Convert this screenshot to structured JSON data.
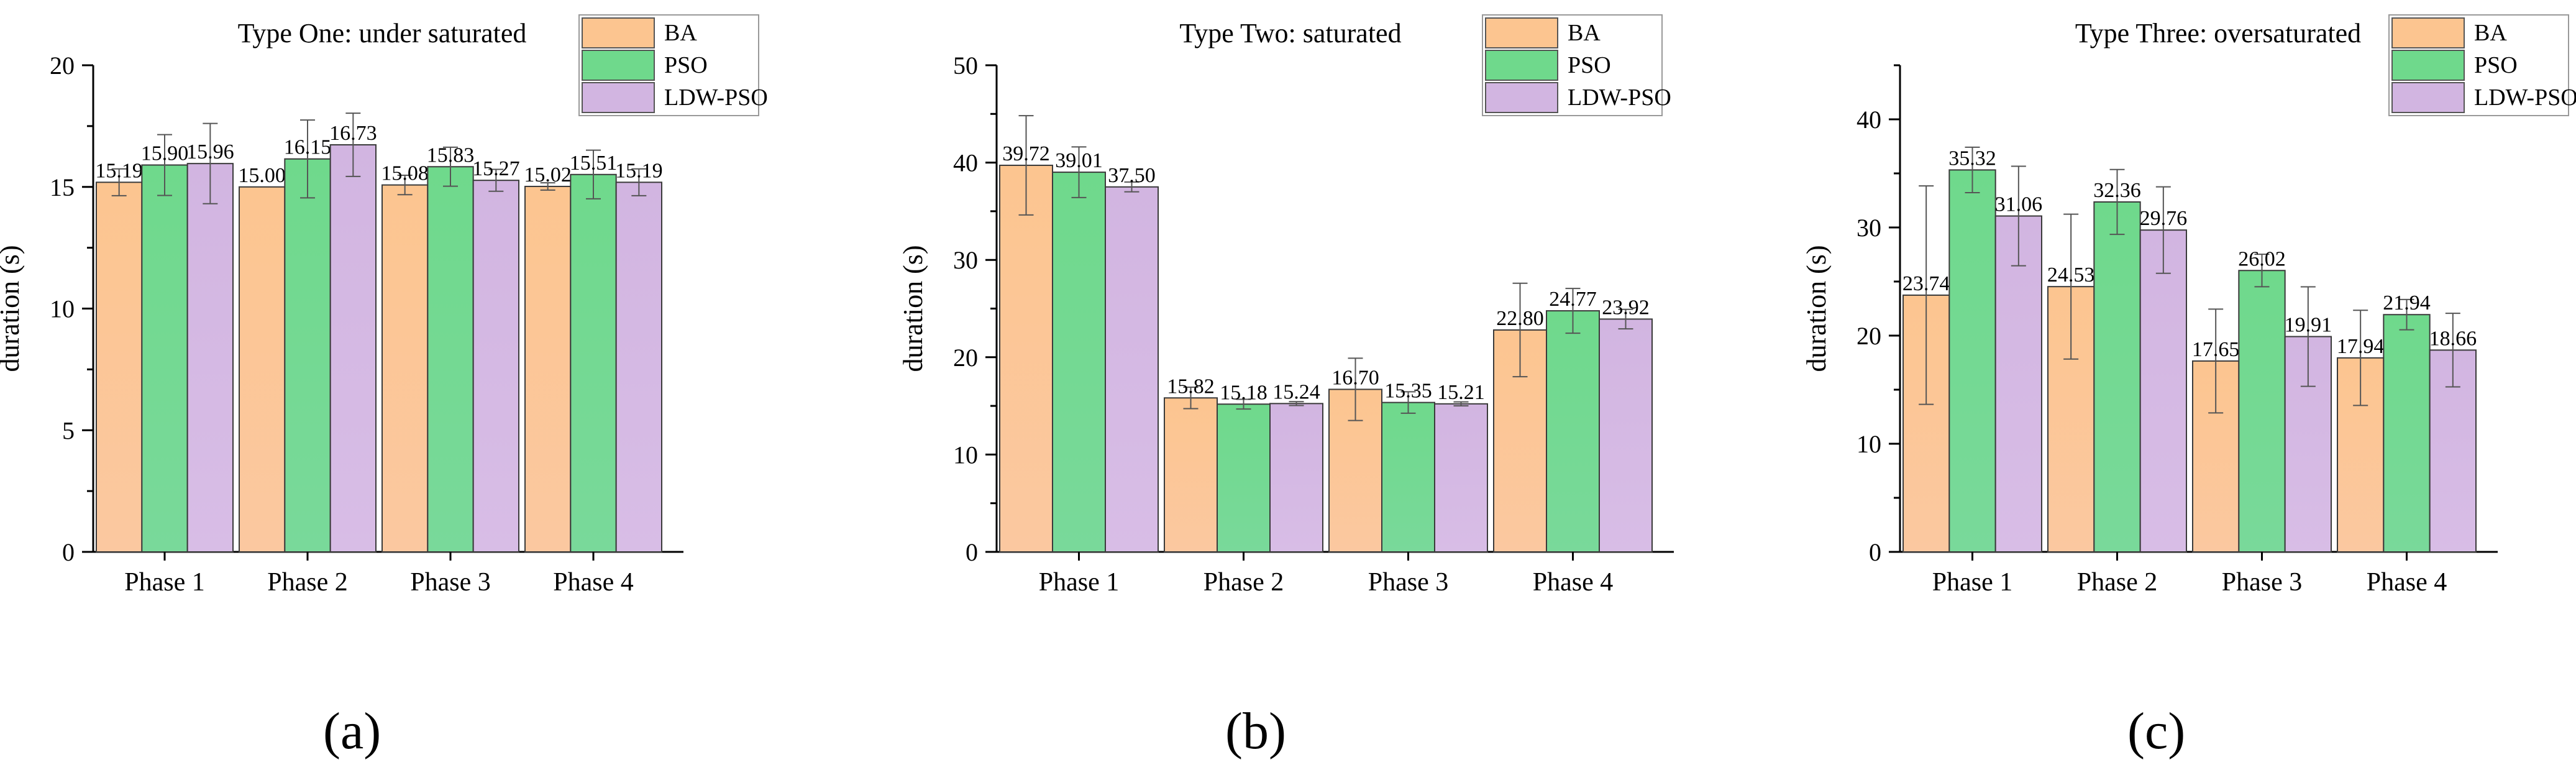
{
  "figure": {
    "panel_labels": [
      "(a)",
      "(b)",
      "(c)"
    ],
    "bar_colors": {
      "BA": "#fcc590",
      "PSO": "#6fd98c",
      "LDW-PSO": "#d2b5e1"
    }
  },
  "chart_data": [
    {
      "type": "bar",
      "title": "Type One: under saturated",
      "xlabel": "",
      "ylabel": "duration (s)",
      "ylim": [
        0,
        20
      ],
      "yticks": [
        0,
        5,
        10,
        15,
        20
      ],
      "categories": [
        "Phase 1",
        "Phase 2",
        "Phase 3",
        "Phase 4"
      ],
      "legend_position": "top-right",
      "series": [
        {
          "name": "BA",
          "values": [
            15.19,
            15.0,
            15.08,
            15.02
          ],
          "labels": [
            "15.19",
            "15.00",
            "15.08",
            "15.02"
          ],
          "errors": [
            0.55,
            0.0,
            0.4,
            0.15
          ]
        },
        {
          "name": "PSO",
          "values": [
            15.9,
            16.15,
            15.83,
            15.51
          ],
          "labels": [
            "15.90",
            "16.15",
            "15.83",
            "15.51"
          ],
          "errors": [
            1.25,
            1.6,
            0.8,
            1.0
          ]
        },
        {
          "name": "LDW-PSO",
          "values": [
            15.96,
            16.73,
            15.27,
            15.19
          ],
          "labels": [
            "15.96",
            "16.73",
            "15.27",
            "15.19"
          ],
          "errors": [
            1.65,
            1.3,
            0.45,
            0.55
          ]
        }
      ]
    },
    {
      "type": "bar",
      "title": "Type Two: saturated",
      "xlabel": "",
      "ylabel": "duration (s)",
      "ylim": [
        0,
        50
      ],
      "yticks": [
        0,
        10,
        20,
        30,
        40,
        50
      ],
      "categories": [
        "Phase 1",
        "Phase 2",
        "Phase 3",
        "Phase 4"
      ],
      "legend_position": "top-right",
      "series": [
        {
          "name": "BA",
          "values": [
            39.72,
            15.82,
            16.7,
            22.8
          ],
          "labels": [
            "39.72",
            "15.82",
            "16.70",
            "22.80"
          ],
          "errors": [
            5.1,
            1.1,
            3.2,
            4.8
          ]
        },
        {
          "name": "PSO",
          "values": [
            39.01,
            15.18,
            15.35,
            24.77
          ],
          "labels": [
            "39.01",
            "15.18",
            "15.35",
            "24.77"
          ],
          "errors": [
            2.6,
            0.5,
            1.1,
            2.3
          ]
        },
        {
          "name": "LDW-PSO",
          "values": [
            37.5,
            15.24,
            15.21,
            23.92
          ],
          "labels": [
            "37.50",
            "15.24",
            "15.21",
            "23.92"
          ],
          "errors": [
            0.5,
            0.2,
            0.2,
            1.0
          ]
        }
      ]
    },
    {
      "type": "bar",
      "title": "Type Three: oversaturated",
      "xlabel": "",
      "ylabel": "duration (s)",
      "ylim": [
        0,
        45
      ],
      "yticks": [
        0,
        10,
        20,
        30,
        40
      ],
      "categories": [
        "Phase 1",
        "Phase 2",
        "Phase 3",
        "Phase 4"
      ],
      "legend_position": "top-right",
      "series": [
        {
          "name": "BA",
          "values": [
            23.74,
            24.53,
            17.65,
            17.94
          ],
          "labels": [
            "23.74",
            "24.53",
            "17.65",
            "17.94"
          ],
          "errors": [
            10.1,
            6.7,
            4.8,
            4.4
          ]
        },
        {
          "name": "PSO",
          "values": [
            35.32,
            32.36,
            26.02,
            21.94
          ],
          "labels": [
            "35.32",
            "32.36",
            "26.02",
            "21.94"
          ],
          "errors": [
            2.1,
            3.0,
            1.5,
            1.4
          ]
        },
        {
          "name": "LDW-PSO",
          "values": [
            31.06,
            29.76,
            19.91,
            18.66
          ],
          "labels": [
            "31.06",
            "29.76",
            "19.91",
            "18.66"
          ],
          "errors": [
            4.6,
            4.0,
            4.6,
            3.4
          ]
        }
      ]
    }
  ]
}
